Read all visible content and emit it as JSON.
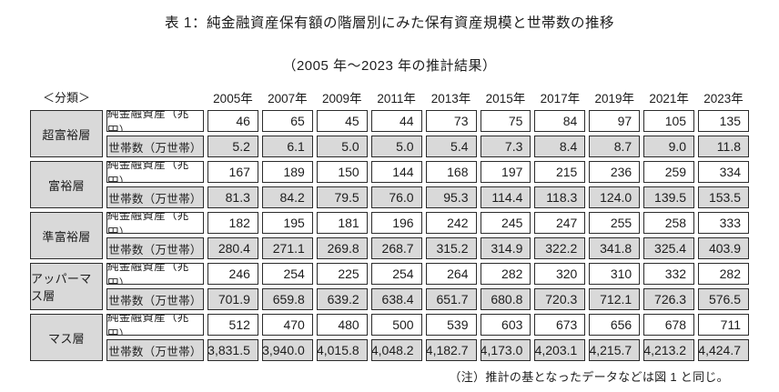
{
  "title": "表 1：純金融資産保有額の階層別にみた保有資産規模と世帯数の推移",
  "subtitle": "（2005 年～2023 年の推計結果）",
  "note": "（注）推計の基となったデータなどは図 1 と同じ。",
  "colors": {
    "shaded_cell": "#d9d9d9",
    "cell_border": "#2b2b2b",
    "background": "#ffffff",
    "text": "#1d1d1d"
  },
  "table": {
    "corner_label": "＜分類＞",
    "years": [
      "2005年",
      "2007年",
      "2009年",
      "2011年",
      "2013年",
      "2015年",
      "2017年",
      "2019年",
      "2021年",
      "2023年"
    ],
    "row_labels": {
      "assets": "純金融資産（兆円）",
      "households": "世帯数（万世帯）"
    },
    "groups": [
      {
        "name": "超富裕層",
        "assets": [
          "46",
          "65",
          "45",
          "44",
          "73",
          "75",
          "84",
          "97",
          "105",
          "135"
        ],
        "households": [
          "5.2",
          "6.1",
          "5.0",
          "5.0",
          "5.4",
          "7.3",
          "8.4",
          "8.7",
          "9.0",
          "11.8"
        ]
      },
      {
        "name": "富裕層",
        "assets": [
          "167",
          "189",
          "150",
          "144",
          "168",
          "197",
          "215",
          "236",
          "259",
          "334"
        ],
        "households": [
          "81.3",
          "84.2",
          "79.5",
          "76.0",
          "95.3",
          "114.4",
          "118.3",
          "124.0",
          "139.5",
          "153.5"
        ]
      },
      {
        "name": "準富裕層",
        "assets": [
          "182",
          "195",
          "181",
          "196",
          "242",
          "245",
          "247",
          "255",
          "258",
          "333"
        ],
        "households": [
          "280.4",
          "271.1",
          "269.8",
          "268.7",
          "315.2",
          "314.9",
          "322.2",
          "341.8",
          "325.4",
          "403.9"
        ]
      },
      {
        "name": "アッパーマス層",
        "assets": [
          "246",
          "254",
          "225",
          "254",
          "264",
          "282",
          "320",
          "310",
          "332",
          "282"
        ],
        "households": [
          "701.9",
          "659.8",
          "639.2",
          "638.4",
          "651.7",
          "680.8",
          "720.3",
          "712.1",
          "726.3",
          "576.5"
        ]
      },
      {
        "name": "マス層",
        "assets": [
          "512",
          "470",
          "480",
          "500",
          "539",
          "603",
          "673",
          "656",
          "678",
          "711"
        ],
        "households": [
          "3,831.5",
          "3,940.0",
          "4,015.8",
          "4,048.2",
          "4,182.7",
          "4,173.0",
          "4,203.1",
          "4,215.7",
          "4,213.2",
          "4,424.7"
        ]
      }
    ]
  }
}
